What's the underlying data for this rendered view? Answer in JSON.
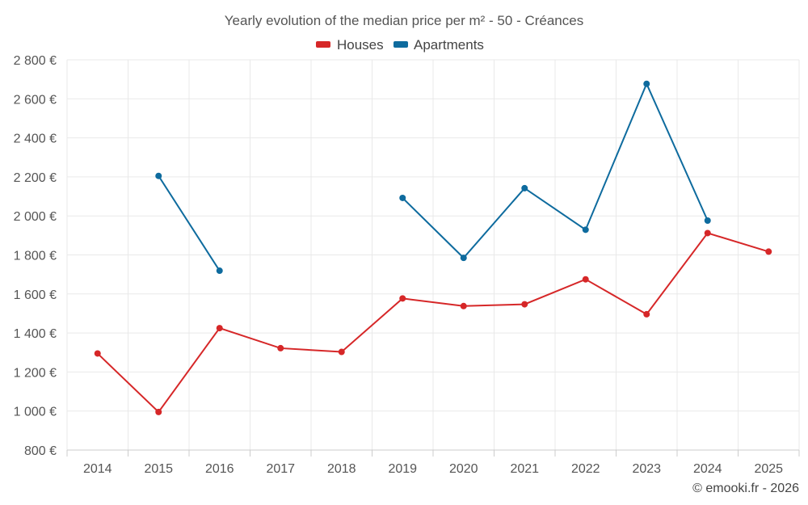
{
  "chart_data": {
    "type": "line",
    "title": "Yearly evolution of the median price per m² - 50 - Créances",
    "categories": [
      "2014",
      "2015",
      "2016",
      "2017",
      "2018",
      "2019",
      "2020",
      "2021",
      "2022",
      "2023",
      "2024",
      "2025"
    ],
    "ylim": [
      800,
      2800
    ],
    "yticks": [
      800,
      1000,
      1200,
      1400,
      1600,
      1800,
      2000,
      2200,
      2400,
      2600,
      2800
    ],
    "ytick_labels": [
      "800 €",
      "1 000 €",
      "1 200 €",
      "1 400 €",
      "1 600 €",
      "1 800 €",
      "2 000 €",
      "2 200 €",
      "2 400 €",
      "2 600 €",
      "2 800 €"
    ],
    "series": [
      {
        "name": "Houses",
        "color": "#d62728",
        "values": [
          1295,
          995,
          1425,
          1322,
          1303,
          1577,
          1538,
          1547,
          1675,
          1496,
          1912,
          1817
        ]
      },
      {
        "name": "Apartments",
        "color": "#0e6b9e",
        "values": [
          null,
          2205,
          1719,
          null,
          null,
          2092,
          1785,
          2142,
          1929,
          2677,
          1976,
          null
        ]
      }
    ],
    "legend_position": "top-center",
    "grid": true
  },
  "credit": "© emooki.fr - 2026"
}
